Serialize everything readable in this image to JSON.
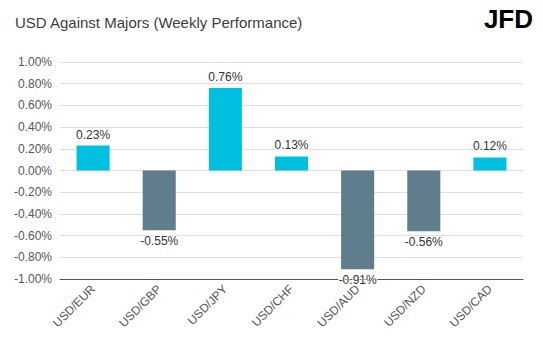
{
  "chart_data": {
    "type": "bar",
    "title": "USD Against Majors (Weekly Performance)",
    "annotations": [
      "JFD"
    ],
    "categories": [
      "USD/EUR",
      "USD/GBP",
      "USD/JPY",
      "USD/CHF",
      "USD/AUD",
      "USD/NZD",
      "USD/CAD"
    ],
    "values": [
      0.23,
      -0.55,
      0.76,
      0.13,
      -0.91,
      -0.56,
      0.12
    ],
    "value_labels": [
      "0.23%",
      "-0.55%",
      "0.76%",
      "0.13%",
      "-0.91%",
      "-0.56%",
      "0.12%"
    ],
    "colors": [
      "#00BFDF",
      "#607D8B",
      "#00BFDF",
      "#00BFDF",
      "#607D8B",
      "#607D8B",
      "#00BFDF"
    ],
    "ylim": [
      -1.0,
      1.0
    ],
    "yticks": [
      {
        "value": -1.0,
        "label": "-1.00%"
      },
      {
        "value": -0.8,
        "label": "-0.80%"
      },
      {
        "value": -0.6,
        "label": "-0.60%"
      },
      {
        "value": -0.4,
        "label": "-0.40%"
      },
      {
        "value": -0.2,
        "label": "-0.20%"
      },
      {
        "value": 0.0,
        "label": "0.00%"
      },
      {
        "value": 0.2,
        "label": "0.20%"
      },
      {
        "value": 0.4,
        "label": "0.40%"
      },
      {
        "value": 0.6,
        "label": "0.60%"
      },
      {
        "value": 0.8,
        "label": "0.80%"
      },
      {
        "value": 1.0,
        "label": "1.00%"
      }
    ],
    "grid": true,
    "data_labels": true
  }
}
